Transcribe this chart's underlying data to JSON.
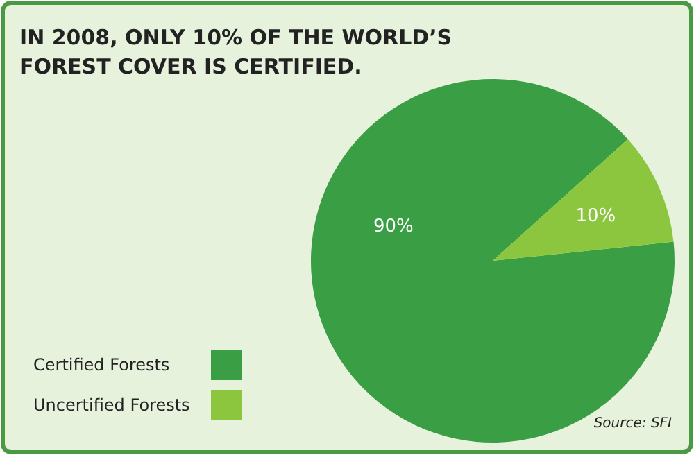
{
  "chart_data": {
    "type": "pie",
    "title": "IN 2008, ONLY 10% OF THE WORLD’S FOREST COVER IS CERTIFIED.",
    "categories": [
      "Certified Forests",
      "Uncertified Forests"
    ],
    "values": [
      90,
      10
    ],
    "colors": [
      "#3a9e45",
      "#8cc63f"
    ],
    "value_labels": [
      "90%",
      "10%"
    ],
    "legend": "bottom left",
    "annotations": [
      "Source: SFI"
    ]
  }
}
